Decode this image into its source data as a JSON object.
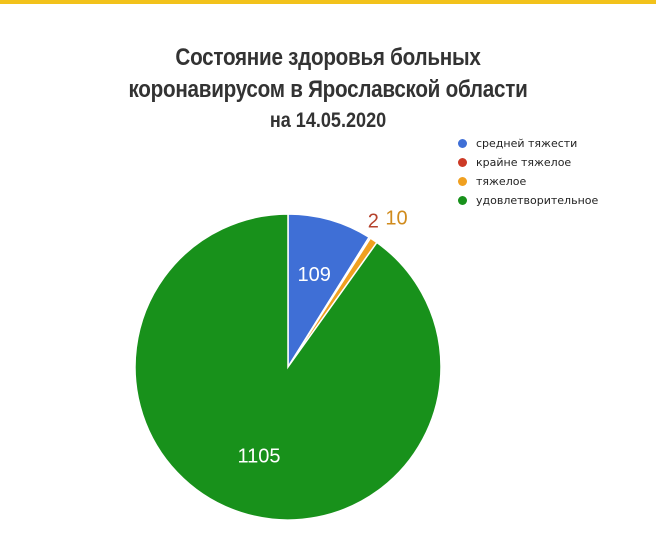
{
  "header": {
    "accent_color": "#f2c21b"
  },
  "chart_data": {
    "type": "pie",
    "title_line1": "Состояние здоровья больных",
    "title_line2": "коронавирусом в Ярославской области",
    "subtitle": "на 14.05.2020",
    "legend_position": "top-right",
    "series": [
      {
        "name": "средней тяжести",
        "value": 109,
        "color": "#3f6fd6",
        "label_color": "#ffffff"
      },
      {
        "name": "крайне тяжелое",
        "value": 2,
        "color": "#cc3a26",
        "label_color": "#b5422c"
      },
      {
        "name": "тяжелое",
        "value": 10,
        "color": "#f0a020",
        "label_color": "#d08b1c"
      },
      {
        "name": "удовлетворительное",
        "value": 1105,
        "color": "#18911b",
        "label_color": "#ffffff"
      }
    ]
  }
}
